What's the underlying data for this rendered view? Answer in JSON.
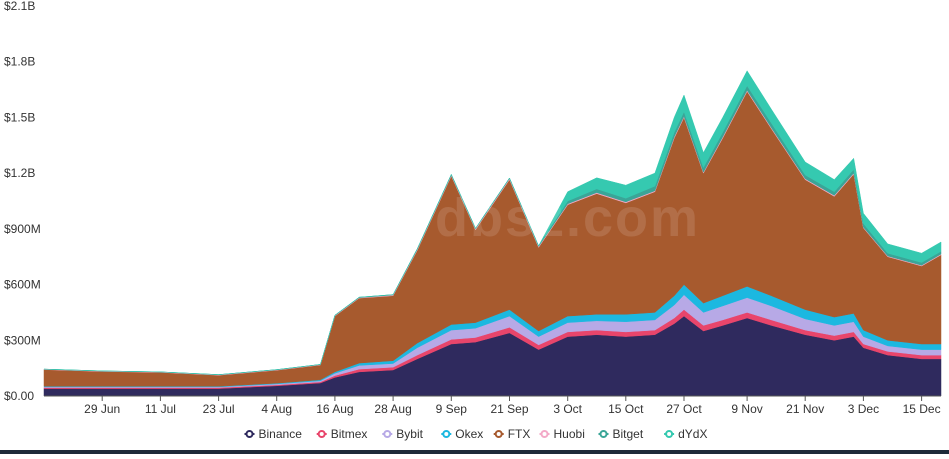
{
  "watermark": "Tdbsz.com",
  "chart_data": {
    "type": "area",
    "stacked": true,
    "title": "",
    "xlabel": "",
    "ylabel": "",
    "ylim": [
      0,
      2100000000
    ],
    "y_ticks": [
      0,
      300000000,
      600000000,
      900000000,
      1200000000,
      1500000000,
      1800000000,
      2100000000
    ],
    "y_tick_labels": [
      "$0.00",
      "$300M",
      "$600M",
      "$900M",
      "$1.2B",
      "$1.5B",
      "$1.8B",
      "$2.1B"
    ],
    "x_start": "2021-06-17",
    "x_end": "2021-12-19",
    "x_ticks": [
      "2021-06-29",
      "2021-07-11",
      "2021-07-23",
      "2021-08-04",
      "2021-08-16",
      "2021-08-28",
      "2021-09-09",
      "2021-09-21",
      "2021-10-03",
      "2021-10-15",
      "2021-10-27",
      "2021-11-09",
      "2021-11-21",
      "2021-12-03",
      "2021-12-15"
    ],
    "x_tick_labels": [
      "29 Jun",
      "11 Jul",
      "23 Jul",
      "4 Aug",
      "16 Aug",
      "28 Aug",
      "9 Sep",
      "21 Sep",
      "3 Oct",
      "15 Oct",
      "27 Oct",
      "9 Nov",
      "21 Nov",
      "3 Dec",
      "15 Dec"
    ],
    "grid": false,
    "legend_position": "bottom",
    "x": [
      "2021-06-17",
      "2021-06-29",
      "2021-07-11",
      "2021-07-23",
      "2021-08-04",
      "2021-08-13",
      "2021-08-16",
      "2021-08-21",
      "2021-08-28",
      "2021-09-02",
      "2021-09-09",
      "2021-09-14",
      "2021-09-21",
      "2021-09-27",
      "2021-10-03",
      "2021-10-09",
      "2021-10-15",
      "2021-10-21",
      "2021-10-25",
      "2021-10-27",
      "2021-10-31",
      "2021-11-04",
      "2021-11-09",
      "2021-11-14",
      "2021-11-21",
      "2021-11-27",
      "2021-12-01",
      "2021-12-03",
      "2021-12-08",
      "2021-12-15",
      "2021-12-19"
    ],
    "series": [
      {
        "name": "Binance",
        "color": "#2f2a5e",
        "values": [
          40000000,
          40000000,
          40000000,
          40000000,
          55000000,
          70000000,
          100000000,
          130000000,
          140000000,
          200000000,
          280000000,
          290000000,
          340000000,
          250000000,
          320000000,
          330000000,
          320000000,
          330000000,
          390000000,
          430000000,
          350000000,
          380000000,
          420000000,
          380000000,
          330000000,
          300000000,
          320000000,
          260000000,
          220000000,
          200000000,
          200000000
        ]
      },
      {
        "name": "Bitmex",
        "color": "#e8456b",
        "values": [
          5000000,
          5000000,
          5000000,
          5000000,
          5000000,
          6000000,
          10000000,
          15000000,
          15000000,
          20000000,
          25000000,
          25000000,
          30000000,
          25000000,
          25000000,
          25000000,
          25000000,
          25000000,
          30000000,
          35000000,
          30000000,
          30000000,
          30000000,
          30000000,
          25000000,
          25000000,
          25000000,
          20000000,
          20000000,
          20000000,
          20000000
        ]
      },
      {
        "name": "Bybit",
        "color": "#b7a9e6",
        "values": [
          4000000,
          4000000,
          4000000,
          4000000,
          5000000,
          6000000,
          12000000,
          20000000,
          20000000,
          40000000,
          50000000,
          50000000,
          60000000,
          45000000,
          50000000,
          50000000,
          55000000,
          55000000,
          70000000,
          80000000,
          70000000,
          75000000,
          80000000,
          75000000,
          60000000,
          55000000,
          55000000,
          40000000,
          30000000,
          30000000,
          30000000
        ]
      },
      {
        "name": "Okex",
        "color": "#1cb8e0",
        "values": [
          3000000,
          3000000,
          3000000,
          3000000,
          4000000,
          5000000,
          8000000,
          12000000,
          15000000,
          25000000,
          30000000,
          30000000,
          35000000,
          30000000,
          35000000,
          35000000,
          40000000,
          40000000,
          50000000,
          55000000,
          50000000,
          55000000,
          60000000,
          55000000,
          50000000,
          45000000,
          45000000,
          35000000,
          30000000,
          30000000,
          30000000
        ]
      },
      {
        "name": "FTX",
        "color": "#a75a2e",
        "values": [
          90000000,
          80000000,
          75000000,
          60000000,
          70000000,
          80000000,
          300000000,
          350000000,
          350000000,
          500000000,
          800000000,
          500000000,
          700000000,
          450000000,
          600000000,
          650000000,
          600000000,
          650000000,
          850000000,
          900000000,
          700000000,
          850000000,
          1050000000,
          900000000,
          700000000,
          650000000,
          750000000,
          550000000,
          450000000,
          420000000,
          480000000
        ]
      },
      {
        "name": "Huobi",
        "color": "#f3a9c7",
        "values": [
          2000000,
          2000000,
          2000000,
          2000000,
          2000000,
          2000000,
          3000000,
          3000000,
          4000000,
          5000000,
          5000000,
          5000000,
          6000000,
          5000000,
          5000000,
          5000000,
          5000000,
          5000000,
          6000000,
          6000000,
          5000000,
          6000000,
          6000000,
          5000000,
          5000000,
          5000000,
          5000000,
          4000000,
          4000000,
          4000000,
          4000000
        ]
      },
      {
        "name": "Bitget",
        "color": "#3aa597",
        "values": [
          1000000,
          1000000,
          1000000,
          1000000,
          1000000,
          1000000,
          2000000,
          2000000,
          2000000,
          3000000,
          3000000,
          3000000,
          3000000,
          3000000,
          15000000,
          20000000,
          20000000,
          25000000,
          25000000,
          25000000,
          25000000,
          25000000,
          25000000,
          25000000,
          20000000,
          20000000,
          20000000,
          20000000,
          15000000,
          15000000,
          15000000
        ]
      },
      {
        "name": "dYdX",
        "color": "#35c9b0",
        "values": [
          0,
          0,
          0,
          0,
          0,
          0,
          0,
          0,
          0,
          0,
          0,
          0,
          0,
          0,
          50000000,
          60000000,
          70000000,
          70000000,
          80000000,
          90000000,
          80000000,
          80000000,
          80000000,
          75000000,
          70000000,
          65000000,
          60000000,
          55000000,
          50000000,
          50000000,
          50000000
        ]
      }
    ]
  }
}
